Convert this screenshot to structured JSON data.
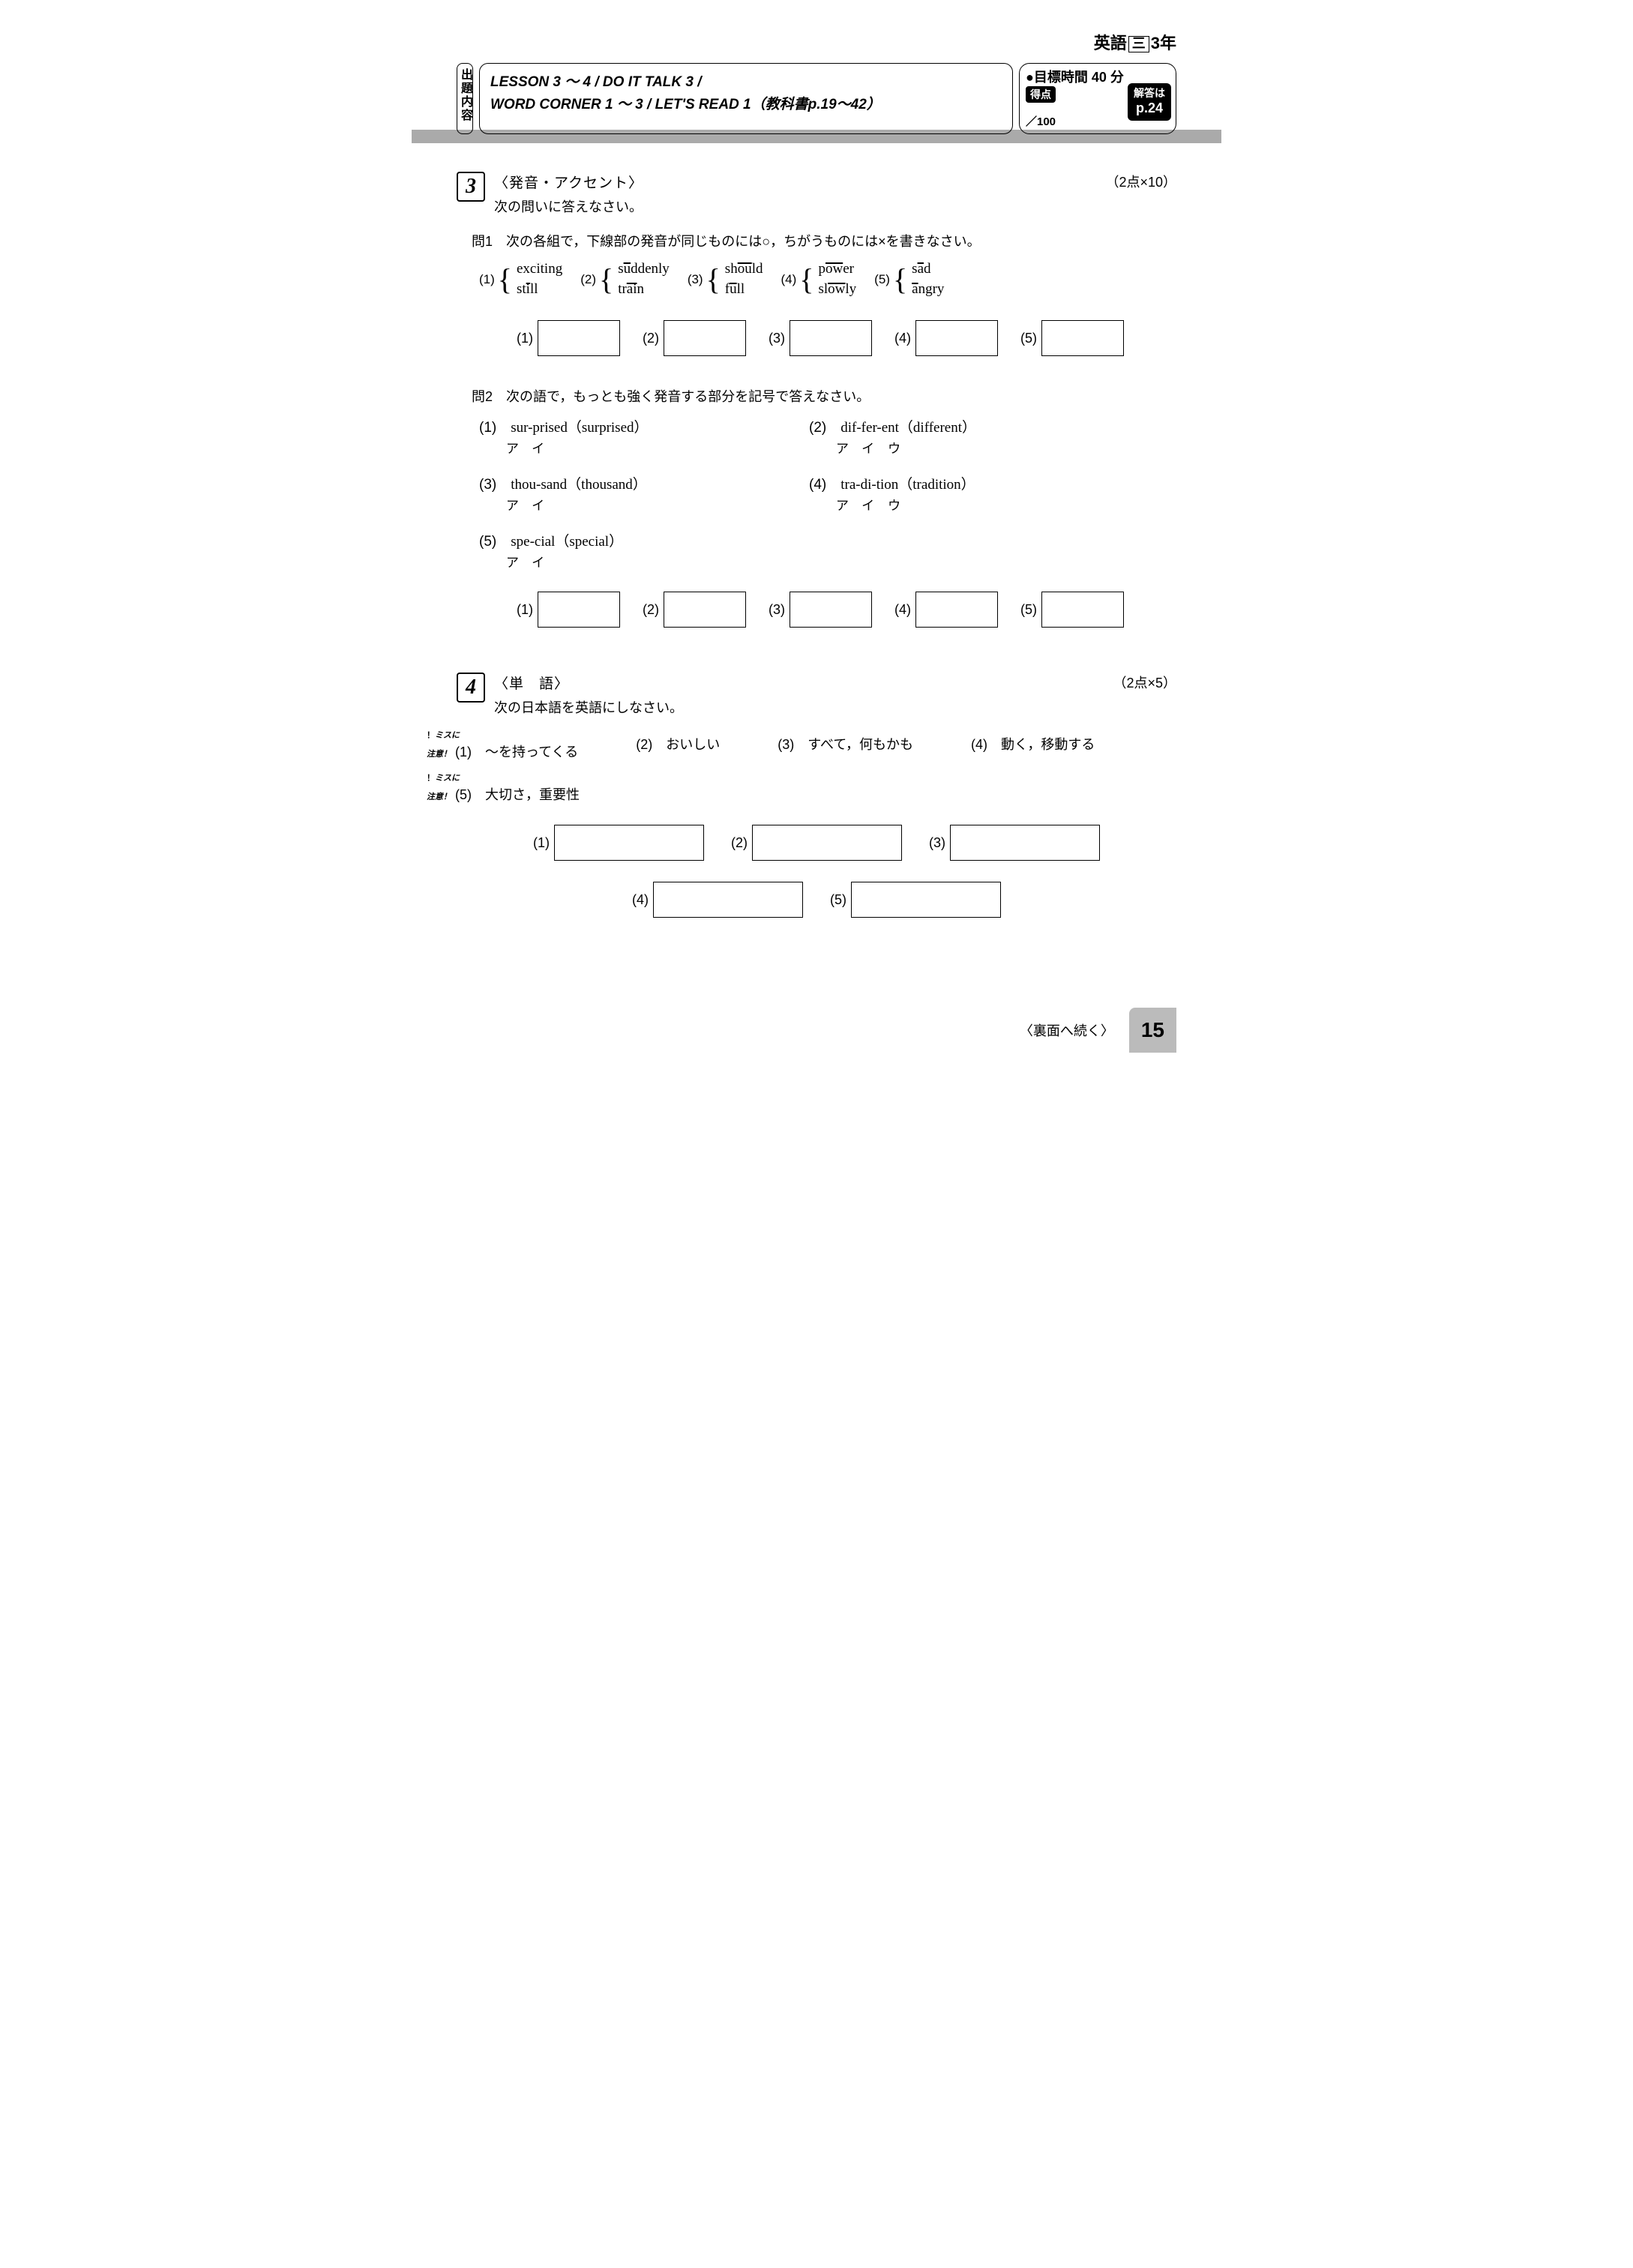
{
  "header": {
    "subject": "英語",
    "gradeBox": "三",
    "year": "3年"
  },
  "title": {
    "leftLabel": "出題内容",
    "line1": "LESSON 3 ～ 4 / DO IT TALK 3 /",
    "line2": "WORD CORNER 1 ～ 3 / LET'S READ 1（教科書p.19～42）"
  },
  "score": {
    "time": "●目標時間 40 分",
    "scoreLabel": "得点",
    "total": "／100",
    "answerLabel": "解答は",
    "answerPage": "p.24"
  },
  "section3": {
    "num": "3",
    "title": "〈発音・アクセント〉",
    "instruction": "次の問いに答えなさい。",
    "points": "（2点×10）",
    "q1": {
      "label": "問1　次の各組で，下線部の発音が同じものには○，ちがうものには×を書きなさい。",
      "pairs": [
        {
          "n": "(1)",
          "w1a": "exc",
          "w1b": "i",
          "w1c": "ting",
          "w2a": "st",
          "w2b": "i",
          "w2c": "ll"
        },
        {
          "n": "(2)",
          "w1a": "s",
          "w1b": "u",
          "w1c": "ddenly",
          "w2a": "tr",
          "w2b": "ai",
          "w2c": "n"
        },
        {
          "n": "(3)",
          "w1a": "sh",
          "w1b": "ou",
          "w1c": "ld",
          "w2a": "f",
          "w2b": "u",
          "w2c": "ll"
        },
        {
          "n": "(4)",
          "w1a": "p",
          "w1b": "ow",
          "w1c": "er",
          "w2a": "sl",
          "w2b": "ow",
          "w2c": "ly"
        },
        {
          "n": "(5)",
          "w1a": "s",
          "w1b": "a",
          "w1c": "d",
          "w2a": "",
          "w2b": "a",
          "w2c": "ngry"
        }
      ],
      "answerLabels": [
        "(1)",
        "(2)",
        "(3)",
        "(4)",
        "(5)"
      ]
    },
    "q2": {
      "label": "問2　次の語で，もっとも強く発音する部分を記号で答えなさい。",
      "items": [
        {
          "n": "(1)",
          "word": "sur-prised（surprised）",
          "kana": "アイ"
        },
        {
          "n": "(2)",
          "word": "dif-fer-ent（different）",
          "kana": "アイウ"
        },
        {
          "n": "(3)",
          "word": "thou-sand（thousand）",
          "kana": "アイ"
        },
        {
          "n": "(4)",
          "word": "tra-di-tion（tradition）",
          "kana": "アイウ"
        },
        {
          "n": "(5)",
          "word": "spe-cial（special）",
          "kana": "アイ"
        }
      ],
      "answerLabels": [
        "(1)",
        "(2)",
        "(3)",
        "(4)",
        "(5)"
      ]
    }
  },
  "section4": {
    "num": "4",
    "title": "〈単　語〉",
    "instruction": "次の日本語を英語にしなさい。",
    "points": "（2点×5）",
    "missLabel": "ミスに\n注意",
    "items": [
      {
        "n": "(1)",
        "jp": "～を持ってくる",
        "miss": true
      },
      {
        "n": "(2)",
        "jp": "おいしい"
      },
      {
        "n": "(3)",
        "jp": "すべて，何もかも"
      },
      {
        "n": "(4)",
        "jp": "動く，移動する"
      },
      {
        "n": "(5)",
        "jp": "大切さ，重要性",
        "miss": true
      }
    ],
    "answerLabels": [
      "(1)",
      "(2)",
      "(3)",
      "(4)",
      "(5)"
    ]
  },
  "footer": {
    "continue": "〈裏面へ続く〉",
    "page": "15"
  }
}
